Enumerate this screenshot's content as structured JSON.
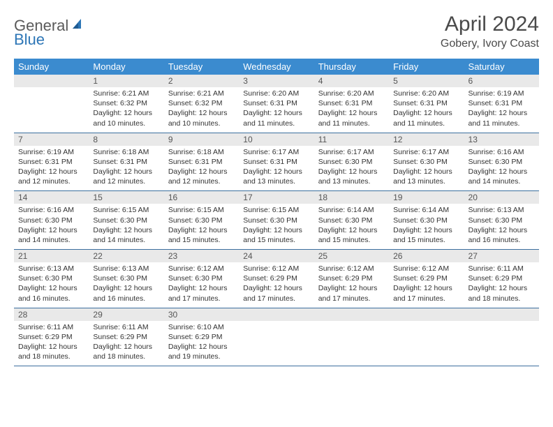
{
  "logo": {
    "general": "General",
    "blue": "Blue"
  },
  "title": "April 2024",
  "location": "Gobery, Ivory Coast",
  "colors": {
    "header_bg": "#3b8bcf",
    "header_text": "#ffffff",
    "daynum_bg": "#e9e9e9",
    "rule": "#3b6f9e",
    "logo_gray": "#5a5a5a",
    "logo_blue": "#2d76b6"
  },
  "days_of_week": [
    "Sunday",
    "Monday",
    "Tuesday",
    "Wednesday",
    "Thursday",
    "Friday",
    "Saturday"
  ],
  "weeks": [
    [
      {
        "n": "",
        "sunrise": "",
        "sunset": "",
        "daylight": ""
      },
      {
        "n": "1",
        "sunrise": "Sunrise: 6:21 AM",
        "sunset": "Sunset: 6:32 PM",
        "daylight": "Daylight: 12 hours and 10 minutes."
      },
      {
        "n": "2",
        "sunrise": "Sunrise: 6:21 AM",
        "sunset": "Sunset: 6:32 PM",
        "daylight": "Daylight: 12 hours and 10 minutes."
      },
      {
        "n": "3",
        "sunrise": "Sunrise: 6:20 AM",
        "sunset": "Sunset: 6:31 PM",
        "daylight": "Daylight: 12 hours and 11 minutes."
      },
      {
        "n": "4",
        "sunrise": "Sunrise: 6:20 AM",
        "sunset": "Sunset: 6:31 PM",
        "daylight": "Daylight: 12 hours and 11 minutes."
      },
      {
        "n": "5",
        "sunrise": "Sunrise: 6:20 AM",
        "sunset": "Sunset: 6:31 PM",
        "daylight": "Daylight: 12 hours and 11 minutes."
      },
      {
        "n": "6",
        "sunrise": "Sunrise: 6:19 AM",
        "sunset": "Sunset: 6:31 PM",
        "daylight": "Daylight: 12 hours and 11 minutes."
      }
    ],
    [
      {
        "n": "7",
        "sunrise": "Sunrise: 6:19 AM",
        "sunset": "Sunset: 6:31 PM",
        "daylight": "Daylight: 12 hours and 12 minutes."
      },
      {
        "n": "8",
        "sunrise": "Sunrise: 6:18 AM",
        "sunset": "Sunset: 6:31 PM",
        "daylight": "Daylight: 12 hours and 12 minutes."
      },
      {
        "n": "9",
        "sunrise": "Sunrise: 6:18 AM",
        "sunset": "Sunset: 6:31 PM",
        "daylight": "Daylight: 12 hours and 12 minutes."
      },
      {
        "n": "10",
        "sunrise": "Sunrise: 6:17 AM",
        "sunset": "Sunset: 6:31 PM",
        "daylight": "Daylight: 12 hours and 13 minutes."
      },
      {
        "n": "11",
        "sunrise": "Sunrise: 6:17 AM",
        "sunset": "Sunset: 6:30 PM",
        "daylight": "Daylight: 12 hours and 13 minutes."
      },
      {
        "n": "12",
        "sunrise": "Sunrise: 6:17 AM",
        "sunset": "Sunset: 6:30 PM",
        "daylight": "Daylight: 12 hours and 13 minutes."
      },
      {
        "n": "13",
        "sunrise": "Sunrise: 6:16 AM",
        "sunset": "Sunset: 6:30 PM",
        "daylight": "Daylight: 12 hours and 14 minutes."
      }
    ],
    [
      {
        "n": "14",
        "sunrise": "Sunrise: 6:16 AM",
        "sunset": "Sunset: 6:30 PM",
        "daylight": "Daylight: 12 hours and 14 minutes."
      },
      {
        "n": "15",
        "sunrise": "Sunrise: 6:15 AM",
        "sunset": "Sunset: 6:30 PM",
        "daylight": "Daylight: 12 hours and 14 minutes."
      },
      {
        "n": "16",
        "sunrise": "Sunrise: 6:15 AM",
        "sunset": "Sunset: 6:30 PM",
        "daylight": "Daylight: 12 hours and 15 minutes."
      },
      {
        "n": "17",
        "sunrise": "Sunrise: 6:15 AM",
        "sunset": "Sunset: 6:30 PM",
        "daylight": "Daylight: 12 hours and 15 minutes."
      },
      {
        "n": "18",
        "sunrise": "Sunrise: 6:14 AM",
        "sunset": "Sunset: 6:30 PM",
        "daylight": "Daylight: 12 hours and 15 minutes."
      },
      {
        "n": "19",
        "sunrise": "Sunrise: 6:14 AM",
        "sunset": "Sunset: 6:30 PM",
        "daylight": "Daylight: 12 hours and 15 minutes."
      },
      {
        "n": "20",
        "sunrise": "Sunrise: 6:13 AM",
        "sunset": "Sunset: 6:30 PM",
        "daylight": "Daylight: 12 hours and 16 minutes."
      }
    ],
    [
      {
        "n": "21",
        "sunrise": "Sunrise: 6:13 AM",
        "sunset": "Sunset: 6:30 PM",
        "daylight": "Daylight: 12 hours and 16 minutes."
      },
      {
        "n": "22",
        "sunrise": "Sunrise: 6:13 AM",
        "sunset": "Sunset: 6:30 PM",
        "daylight": "Daylight: 12 hours and 16 minutes."
      },
      {
        "n": "23",
        "sunrise": "Sunrise: 6:12 AM",
        "sunset": "Sunset: 6:30 PM",
        "daylight": "Daylight: 12 hours and 17 minutes."
      },
      {
        "n": "24",
        "sunrise": "Sunrise: 6:12 AM",
        "sunset": "Sunset: 6:29 PM",
        "daylight": "Daylight: 12 hours and 17 minutes."
      },
      {
        "n": "25",
        "sunrise": "Sunrise: 6:12 AM",
        "sunset": "Sunset: 6:29 PM",
        "daylight": "Daylight: 12 hours and 17 minutes."
      },
      {
        "n": "26",
        "sunrise": "Sunrise: 6:12 AM",
        "sunset": "Sunset: 6:29 PM",
        "daylight": "Daylight: 12 hours and 17 minutes."
      },
      {
        "n": "27",
        "sunrise": "Sunrise: 6:11 AM",
        "sunset": "Sunset: 6:29 PM",
        "daylight": "Daylight: 12 hours and 18 minutes."
      }
    ],
    [
      {
        "n": "28",
        "sunrise": "Sunrise: 6:11 AM",
        "sunset": "Sunset: 6:29 PM",
        "daylight": "Daylight: 12 hours and 18 minutes."
      },
      {
        "n": "29",
        "sunrise": "Sunrise: 6:11 AM",
        "sunset": "Sunset: 6:29 PM",
        "daylight": "Daylight: 12 hours and 18 minutes."
      },
      {
        "n": "30",
        "sunrise": "Sunrise: 6:10 AM",
        "sunset": "Sunset: 6:29 PM",
        "daylight": "Daylight: 12 hours and 19 minutes."
      },
      {
        "n": "",
        "sunrise": "",
        "sunset": "",
        "daylight": ""
      },
      {
        "n": "",
        "sunrise": "",
        "sunset": "",
        "daylight": ""
      },
      {
        "n": "",
        "sunrise": "",
        "sunset": "",
        "daylight": ""
      },
      {
        "n": "",
        "sunrise": "",
        "sunset": "",
        "daylight": ""
      }
    ]
  ]
}
